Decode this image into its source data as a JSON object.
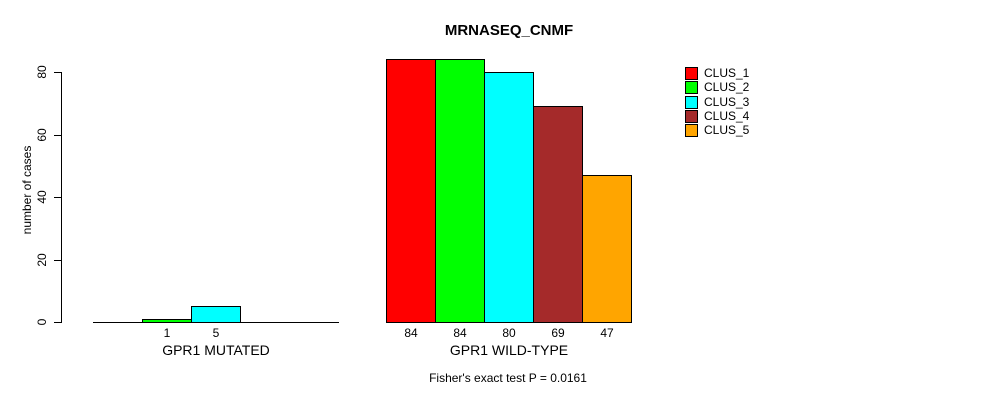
{
  "title": "MRNASEQ_CNMF",
  "footer": "Fisher's exact test P = 0.0161",
  "chart_data": {
    "type": "bar",
    "title": "MRNASEQ_CNMF",
    "xlabel": "",
    "ylabel": "number of cases",
    "ylim": [
      0,
      80
    ],
    "yticks": [
      0,
      20,
      40,
      60,
      80
    ],
    "grid": false,
    "legend_position": "top-right",
    "series_names": [
      "CLUS_1",
      "CLUS_2",
      "CLUS_3",
      "CLUS_4",
      "CLUS_5"
    ],
    "colors": [
      "#FF0000",
      "#00FF00",
      "#00FFFF",
      "#A52A2A",
      "#FFA500"
    ],
    "groups": [
      {
        "label": "GPR1 MUTATED",
        "values": [
          0,
          1,
          5,
          0,
          0
        ],
        "bar_labels": [
          "",
          "1",
          "5",
          "",
          ""
        ]
      },
      {
        "label": "GPR1 WILD-TYPE",
        "values": [
          84,
          84,
          80,
          69,
          47
        ],
        "bar_labels": [
          "84",
          "84",
          "80",
          "69",
          "47"
        ]
      }
    ],
    "annotation": "Fisher's exact test P = 0.0161"
  }
}
